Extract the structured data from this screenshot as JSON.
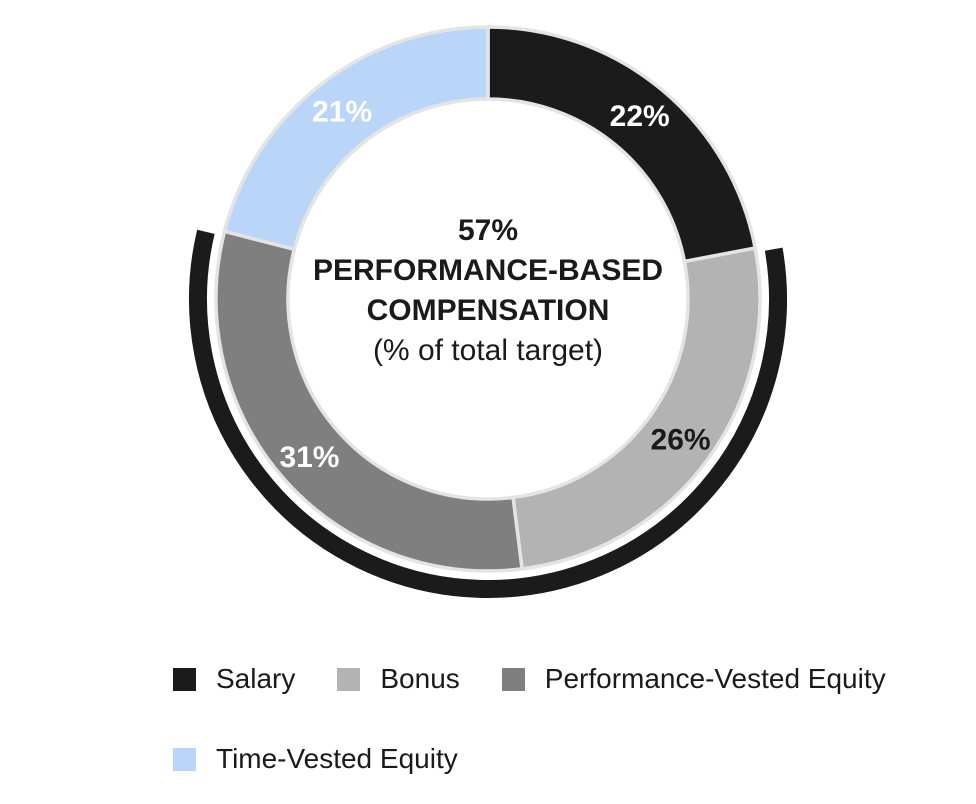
{
  "chart_data": {
    "type": "pie",
    "subtype": "donut",
    "start_angle_deg": 0,
    "direction": "clockwise",
    "slices": [
      {
        "label": "Salary",
        "value": 22,
        "color": "#1B1B1B",
        "data_label": "22%",
        "data_label_color": "#FFFFFF"
      },
      {
        "label": "Bonus",
        "value": 26,
        "color": "#B3B3B3",
        "data_label": "26%",
        "data_label_color": "#1A1A1A"
      },
      {
        "label": "Performance-Vested Equity",
        "value": 31,
        "color": "#7F7F7F",
        "data_label": "31%",
        "data_label_color": "#FFFFFF"
      },
      {
        "label": "Time-Vested Equity",
        "value": 21,
        "color": "#B9D6F9",
        "data_label": "21%",
        "data_label_color": "#FFFFFF"
      }
    ],
    "center_label": {
      "value": "57%",
      "line2": "PERFORMANCE-BASED",
      "line3": "COMPENSATION",
      "note": "(% of total target)"
    },
    "highlight_arc": {
      "percent": 57,
      "covers": [
        "Bonus",
        "Performance-Vested Equity"
      ],
      "from_percent": 22,
      "to_percent": 79,
      "color": "#1B1B1B"
    },
    "legend_position": "bottom",
    "slice_separator_color": "#E4E4E4",
    "background_color": "#FFFFFF"
  }
}
